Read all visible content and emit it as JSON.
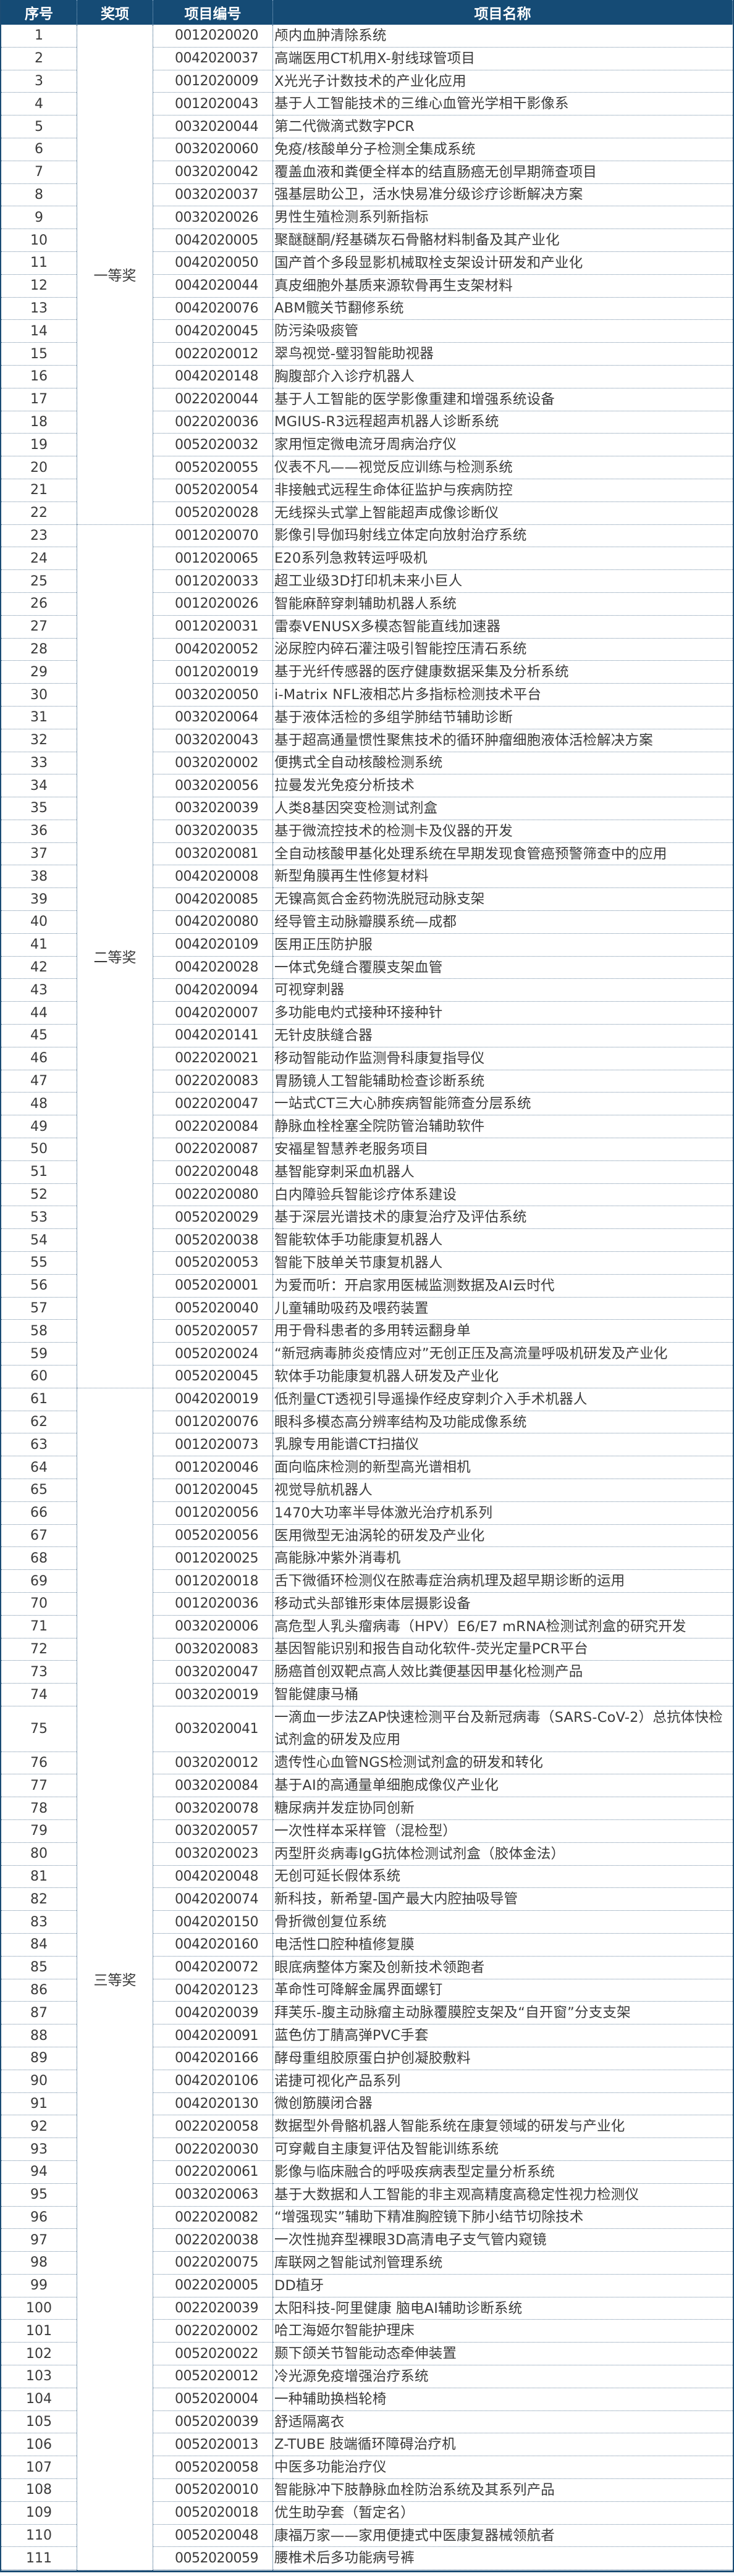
{
  "header": {
    "seq": "序号",
    "award": "奖项",
    "code": "项目编号",
    "name": "项目名称"
  },
  "colors": {
    "header_bg": "#154b75",
    "border": "#1b4c74",
    "text": "#3a3a3a"
  },
  "awards": [
    {
      "label": "一等奖",
      "from": 1,
      "to": 22
    },
    {
      "label": "二等奖",
      "from": 23,
      "to": 60
    },
    {
      "label": "三等奖",
      "from": 61,
      "to": 111
    }
  ],
  "rows": [
    [
      "1",
      "0012020020",
      "颅内血肿清除系统"
    ],
    [
      "2",
      "0042020037",
      "高端医用CT机用X-射线球管项目"
    ],
    [
      "3",
      "0012020009",
      "X光光子计数技术的产业化应用"
    ],
    [
      "4",
      "0012020043",
      "基于人工智能技术的三维心血管光学相干影像系"
    ],
    [
      "5",
      "0032020044",
      "第二代微滴式数字PCR"
    ],
    [
      "6",
      "0032020060",
      "免疫/核酸单分子检测全集成系统"
    ],
    [
      "7",
      "0032020042",
      "覆盖血液和粪便全样本的结直肠癌无创早期筛查项目"
    ],
    [
      "8",
      "0032020037",
      "强基层助公卫，活水快易准分级诊疗诊断解决方案"
    ],
    [
      "9",
      "0032020026",
      "男性生殖检测系列新指标"
    ],
    [
      "10",
      "0042020005",
      "聚醚醚酮/羟基磷灰石骨骼材料制备及其产业化"
    ],
    [
      "11",
      "0042020050",
      "国产首个多段显影机械取栓支架设计研发和产业化"
    ],
    [
      "12",
      "0042020044",
      "真皮细胞外基质来源软骨再生支架材料"
    ],
    [
      "13",
      "0042020076",
      "ABM髋关节翻修系统"
    ],
    [
      "14",
      "0042020045",
      "防污染吸痰管"
    ],
    [
      "15",
      "0022020012",
      "翠鸟视觉-璧羽智能助视器"
    ],
    [
      "16",
      "0042020148",
      "胸腹部介入诊疗机器人"
    ],
    [
      "17",
      "0022020044",
      "基于人工智能的医学影像重建和增强系统设备"
    ],
    [
      "18",
      "0022020036",
      "MGIUS-R3远程超声机器人诊断系统"
    ],
    [
      "19",
      "0052020032",
      "家用恒定微电流牙周病治疗仪"
    ],
    [
      "20",
      "0052020055",
      "仪表不凡——视觉反应训练与检测系统"
    ],
    [
      "21",
      "0052020054",
      "非接触式远程生命体征监护与疾病防控"
    ],
    [
      "22",
      "0052020028",
      "无线探头式掌上智能超声成像诊断仪"
    ],
    [
      "23",
      "0012020070",
      "影像引导伽玛射线立体定向放射治疗系统"
    ],
    [
      "24",
      "0012020065",
      "E20系列急救转运呼吸机"
    ],
    [
      "25",
      "0012020033",
      "超工业级3D打印机未来小巨人"
    ],
    [
      "26",
      "0012020026",
      "智能麻醉穿刺辅助机器人系统"
    ],
    [
      "27",
      "0012020031",
      "雷泰VENUSX多模态智能直线加速器"
    ],
    [
      "28",
      "0042020052",
      "泌尿腔内碎石灌注吸引智能控压清石系统"
    ],
    [
      "29",
      "0012020019",
      "基于光纤传感器的医疗健康数据采集及分析系统"
    ],
    [
      "30",
      "0032020050",
      "i-Matrix NFL液相芯片多指标检测技术平台"
    ],
    [
      "31",
      "0032020064",
      "基于液体活检的多组学肺结节辅助诊断"
    ],
    [
      "32",
      "0032020043",
      "基于超高通量惯性聚焦技术的循环肿瘤细胞液体活检解决方案"
    ],
    [
      "33",
      "0032020002",
      "便携式全自动核酸检测系统"
    ],
    [
      "34",
      "0032020056",
      "拉曼发光免疫分析技术"
    ],
    [
      "35",
      "0032020039",
      "人类8基因突变检测试剂盒"
    ],
    [
      "36",
      "0032020035",
      "基于微流控技术的检测卡及仪器的开发"
    ],
    [
      "37",
      "0032020081",
      "全自动核酸甲基化处理系统在早期发现食管癌预警筛查中的应用"
    ],
    [
      "38",
      "0042020008",
      "新型角膜再生性修复材料"
    ],
    [
      "39",
      "0042020085",
      "无镍高氮合金药物洗脱冠动脉支架"
    ],
    [
      "40",
      "0042020080",
      "经导管主动脉瓣膜系统—成都"
    ],
    [
      "41",
      "0042020109",
      "医用正压防护服"
    ],
    [
      "42",
      "0042020028",
      "一体式免缝合覆膜支架血管"
    ],
    [
      "43",
      "0042020094",
      "可视穿刺器"
    ],
    [
      "44",
      "0042020007",
      "多功能电灼式接种环接种针"
    ],
    [
      "45",
      "0042020141",
      "无针皮肤缝合器"
    ],
    [
      "46",
      "0022020021",
      "移动智能动作监测骨科康复指导仪"
    ],
    [
      "47",
      "0022020083",
      "胃肠镜人工智能辅助检查诊断系统"
    ],
    [
      "48",
      "0022020047",
      "一站式CT三大心肺疾病智能筛查分层系统"
    ],
    [
      "49",
      "0022020084",
      "静脉血栓栓塞全院防管治辅助软件"
    ],
    [
      "50",
      "0022020087",
      "安福星智慧养老服务项目"
    ],
    [
      "51",
      "0022020048",
      "基智能穿刺采血机器人"
    ],
    [
      "52",
      "0022020080",
      "白内障验兵智能诊疗体系建设"
    ],
    [
      "53",
      "0052020029",
      "基于深层光谱技术的康复治疗及评估系统"
    ],
    [
      "54",
      "0052020038",
      "智能软体手功能康复机器人"
    ],
    [
      "55",
      "0052020053",
      "智能下肢单关节康复机器人"
    ],
    [
      "56",
      "0052020001",
      "为爱而听：开启家用医械监测数据及AI云时代"
    ],
    [
      "57",
      "0052020040",
      "儿童辅助吸药及喂药装置"
    ],
    [
      "58",
      "0052020057",
      "用于骨科患者的多用转运翻身单"
    ],
    [
      "59",
      "0052020024",
      "“新冠病毒肺炎疫情应对”无创正压及高流量呼吸机研发及产业化"
    ],
    [
      "60",
      "0052020045",
      "软体手功能康复机器人研发及产业化"
    ],
    [
      "61",
      "0042020019",
      "低剂量CT透视引导遥操作经皮穿刺介入手术机器人"
    ],
    [
      "62",
      "0012020076",
      "眼科多模态高分辨率结构及功能成像系统"
    ],
    [
      "63",
      "0012020073",
      "乳腺专用能谱CT扫描仪"
    ],
    [
      "64",
      "0012020046",
      "面向临床检测的新型高光谱相机"
    ],
    [
      "65",
      "0012020045",
      "视觉导航机器人"
    ],
    [
      "66",
      "0012020056",
      "1470大功率半导体激光治疗机系列"
    ],
    [
      "67",
      "0052020056",
      "医用微型无油涡轮的研发及产业化"
    ],
    [
      "68",
      "0012020025",
      "高能脉冲紫外消毒机"
    ],
    [
      "69",
      "0012020018",
      "舌下微循环检测仪在脓毒症治病机理及超早期诊断的运用"
    ],
    [
      "70",
      "0012020036",
      "移动式头部锥形束体层摄影设备"
    ],
    [
      "71",
      "0032020006",
      "高危型人乳头瘤病毒（HPV）E6/E7 mRNA检测试剂盒的研究开发"
    ],
    [
      "72",
      "0032020083",
      "基因智能识别和报告自动化软件-荧光定量PCR平台"
    ],
    [
      "73",
      "0032020047",
      "肠癌首创双靶点高人效比粪便基因甲基化检测产品"
    ],
    [
      "74",
      "0032020019",
      "智能健康马桶"
    ],
    [
      "75",
      "0032020041",
      "一滴血一步法ZAP快速检测平台及新冠病毒（SARS-CoV-2）总抗体快检试剂盒的研发及应用"
    ],
    [
      "76",
      "0032020012",
      "遗传性心血管NGS检测试剂盒的研发和转化"
    ],
    [
      "77",
      "0032020084",
      "基于AI的高通量单细胞成像仪产业化"
    ],
    [
      "78",
      "0032020078",
      "糖尿病并发症协同创新"
    ],
    [
      "79",
      "0032020057",
      "一次性样本采样管（混检型）"
    ],
    [
      "80",
      "0032020023",
      "丙型肝炎病毒IgG抗体检测试剂盒（胶体金法）"
    ],
    [
      "81",
      "0042020048",
      "无创可延长假体系统"
    ],
    [
      "82",
      "0042020074",
      "新科技，新希望-国产最大内腔抽吸导管"
    ],
    [
      "83",
      "0042020150",
      "骨折微创复位系统"
    ],
    [
      "84",
      "0042020160",
      "电活性口腔种植修复膜"
    ],
    [
      "85",
      "0042020072",
      "眼底病整体方案及创新技术领跑者"
    ],
    [
      "86",
      "0042020123",
      "革命性可降解金属界面螺钉"
    ],
    [
      "87",
      "0042020039",
      "拜芙乐-腹主动脉瘤主动脉覆膜腔支架及“自开窗”分支支架"
    ],
    [
      "88",
      "0042020091",
      "蓝色仿丁腈高弹PVC手套"
    ],
    [
      "89",
      "0042020166",
      "酵母重组胶原蛋白护创凝胶敷料"
    ],
    [
      "90",
      "0042020106",
      "诺捷可视化产品系列"
    ],
    [
      "91",
      "0042020130",
      "微创筋膜闭合器"
    ],
    [
      "92",
      "0022020058",
      "数据型外骨骼机器人智能系统在康复领域的研发与产业化"
    ],
    [
      "93",
      "0022020030",
      "可穿戴自主康复评估及智能训练系统"
    ],
    [
      "94",
      "0022020061",
      "影像与临床融合的呼吸疾病表型定量分析系统"
    ],
    [
      "95",
      "0032020063",
      "基于大数据和人工智能的非主观高精度高稳定性视力检测仪"
    ],
    [
      "96",
      "0022020082",
      "“增强现实”辅助下精准胸腔镜下肺小结节切除技术"
    ],
    [
      "97",
      "0022020038",
      "一次性抛弃型裸眼3D高清电子支气管内窥镜"
    ],
    [
      "98",
      "0022020075",
      "库联网之智能试剂管理系统"
    ],
    [
      "99",
      "0022020005",
      "DD植牙"
    ],
    [
      "100",
      "0022020039",
      "太阳科技-阿里健康 脑电AI辅助诊断系统"
    ],
    [
      "101",
      "0022020002",
      "哈工海姬尔智能护理床"
    ],
    [
      "102",
      "0052020022",
      "颞下颌关节智能动态牵伸装置"
    ],
    [
      "103",
      "0052020012",
      "冷光源免疫增强治疗系统"
    ],
    [
      "104",
      "0052020004",
      "一种辅助换档轮椅"
    ],
    [
      "105",
      "0052020039",
      "舒适隔离衣"
    ],
    [
      "106",
      "0052020013",
      "Z-TUBE 肢端循环障碍治疗机"
    ],
    [
      "107",
      "0052020058",
      "中医多功能治疗仪"
    ],
    [
      "108",
      "0052020010",
      "智能脉冲下肢静脉血栓防治系统及其系列产品"
    ],
    [
      "109",
      "0052020018",
      "优生助孕套（暂定名）"
    ],
    [
      "110",
      "0052020048",
      "康福万家——家用便捷式中医康复器械领航者"
    ],
    [
      "111",
      "0052020059",
      "腰椎术后多功能病号裤"
    ]
  ]
}
